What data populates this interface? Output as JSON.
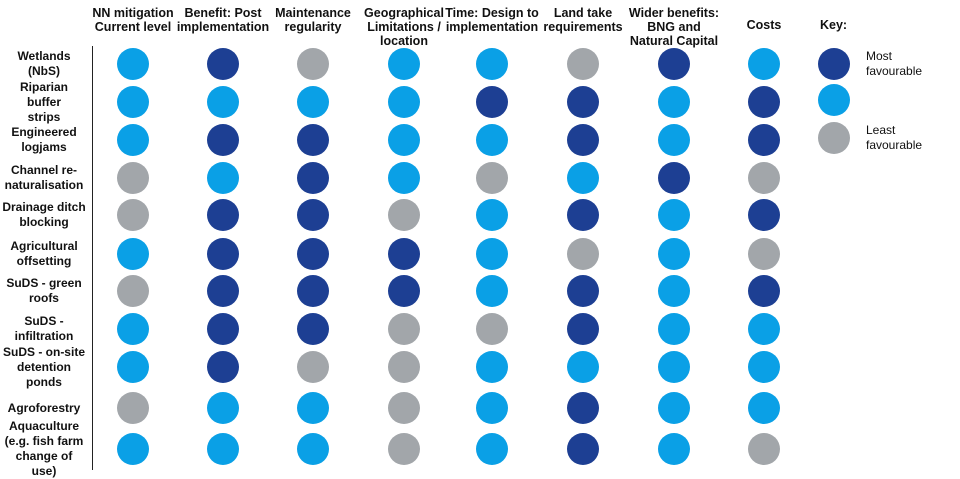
{
  "colors": {
    "most_favourable": "#1d3f93",
    "middle": "#0aa0e6",
    "least_favourable": "#a2a6aa"
  },
  "columns": [
    "NN mitigation Current level",
    "Benefit: Post implementation",
    "Maintenance regularity",
    "Geographical Limitations / location",
    "Time: Design to implementation",
    "Land take requirements",
    "Wider benefits: BNG and Natural Capital",
    "Costs"
  ],
  "rows": [
    {
      "label": "Wetlands (NbS)",
      "ratings": [
        "mid",
        "most",
        "least",
        "mid",
        "mid",
        "least",
        "most",
        "mid"
      ]
    },
    {
      "label": "Riparian buffer strips",
      "ratings": [
        "mid",
        "mid",
        "mid",
        "mid",
        "most",
        "most",
        "mid",
        "most"
      ]
    },
    {
      "label": "Engineered logjams",
      "ratings": [
        "mid",
        "most",
        "most",
        "mid",
        "mid",
        "most",
        "mid",
        "most"
      ]
    },
    {
      "label": "Channel re-naturalisation",
      "ratings": [
        "least",
        "mid",
        "most",
        "mid",
        "least",
        "mid",
        "most",
        "least"
      ]
    },
    {
      "label": "Drainage ditch blocking",
      "ratings": [
        "least",
        "most",
        "most",
        "least",
        "mid",
        "most",
        "mid",
        "most"
      ]
    },
    {
      "label": "Agricultural offsetting",
      "ratings": [
        "mid",
        "most",
        "most",
        "most",
        "mid",
        "least",
        "mid",
        "least"
      ]
    },
    {
      "label": "SuDS - green roofs",
      "ratings": [
        "least",
        "most",
        "most",
        "most",
        "mid",
        "most",
        "mid",
        "most"
      ]
    },
    {
      "label": "SuDS - infiltration",
      "ratings": [
        "mid",
        "most",
        "most",
        "least",
        "least",
        "most",
        "mid",
        "mid"
      ]
    },
    {
      "label": "SuDS - on-site detention ponds",
      "ratings": [
        "mid",
        "most",
        "least",
        "least",
        "mid",
        "mid",
        "mid",
        "mid"
      ]
    },
    {
      "label": "Agroforestry",
      "ratings": [
        "least",
        "mid",
        "mid",
        "least",
        "mid",
        "most",
        "mid",
        "mid"
      ]
    },
    {
      "label": "Aquaculture (e.g. fish farm change of use)",
      "ratings": [
        "mid",
        "mid",
        "mid",
        "least",
        "mid",
        "most",
        "mid",
        "least"
      ]
    }
  ],
  "key": {
    "title": "Key:",
    "items": [
      {
        "rating": "most",
        "label": "Most favourable"
      },
      {
        "rating": "mid",
        "label": ""
      },
      {
        "rating": "least",
        "label": "Least favourable"
      }
    ]
  }
}
